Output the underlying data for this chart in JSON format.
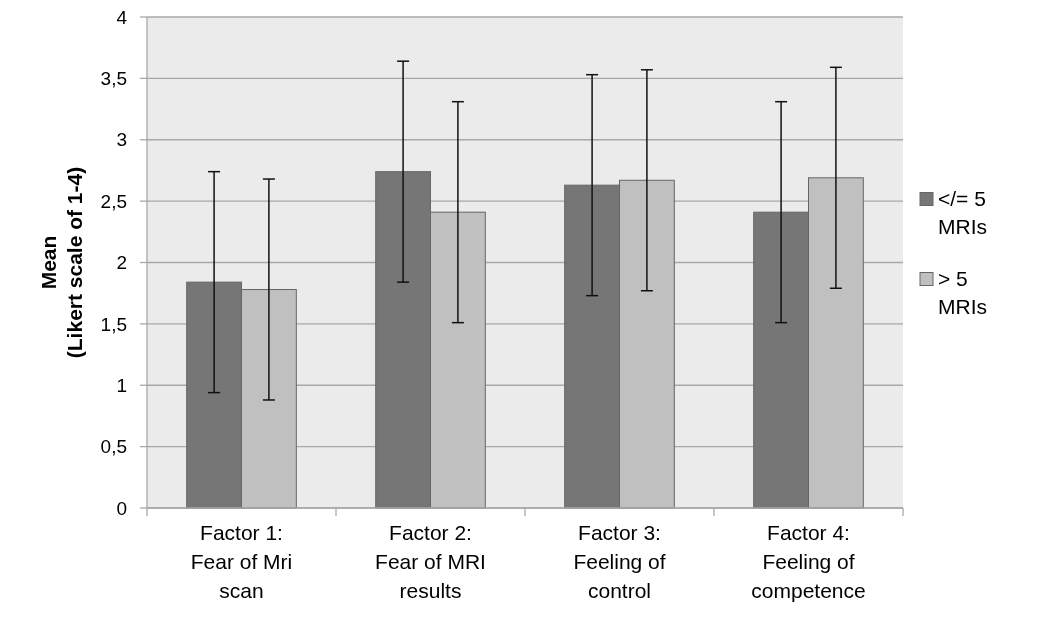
{
  "chart_data": {
    "type": "bar",
    "ylabel": "Mean\n(Likert scale of 1-4)",
    "categories": [
      "Factor 1: Fear of Mri scan",
      "Factor 2: Fear of MRI results",
      "Factor 3: Feeling of control",
      "Factor 4: Feeling of competence"
    ],
    "series": [
      {
        "name": "</= 5 MRIs",
        "color": "#767676",
        "values": [
          1.84,
          2.74,
          2.63,
          2.41
        ],
        "errors": [
          0.9,
          0.9,
          0.9,
          0.9
        ]
      },
      {
        "name": "> 5 MRIs",
        "color": "#c0c0c0",
        "values": [
          1.78,
          2.41,
          2.67,
          2.69
        ],
        "errors": [
          0.9,
          0.9,
          0.9,
          0.9
        ]
      }
    ],
    "ylim": [
      0,
      4
    ],
    "yticks": [
      0,
      {
        "value": 0.5,
        "label": "0,5"
      },
      1,
      {
        "value": 1.5,
        "label": "1,5"
      },
      2,
      {
        "value": 2.5,
        "label": "2,5"
      },
      3,
      {
        "value": 3.5,
        "label": "3,5"
      },
      4
    ],
    "grid": "y",
    "legend": "right"
  }
}
